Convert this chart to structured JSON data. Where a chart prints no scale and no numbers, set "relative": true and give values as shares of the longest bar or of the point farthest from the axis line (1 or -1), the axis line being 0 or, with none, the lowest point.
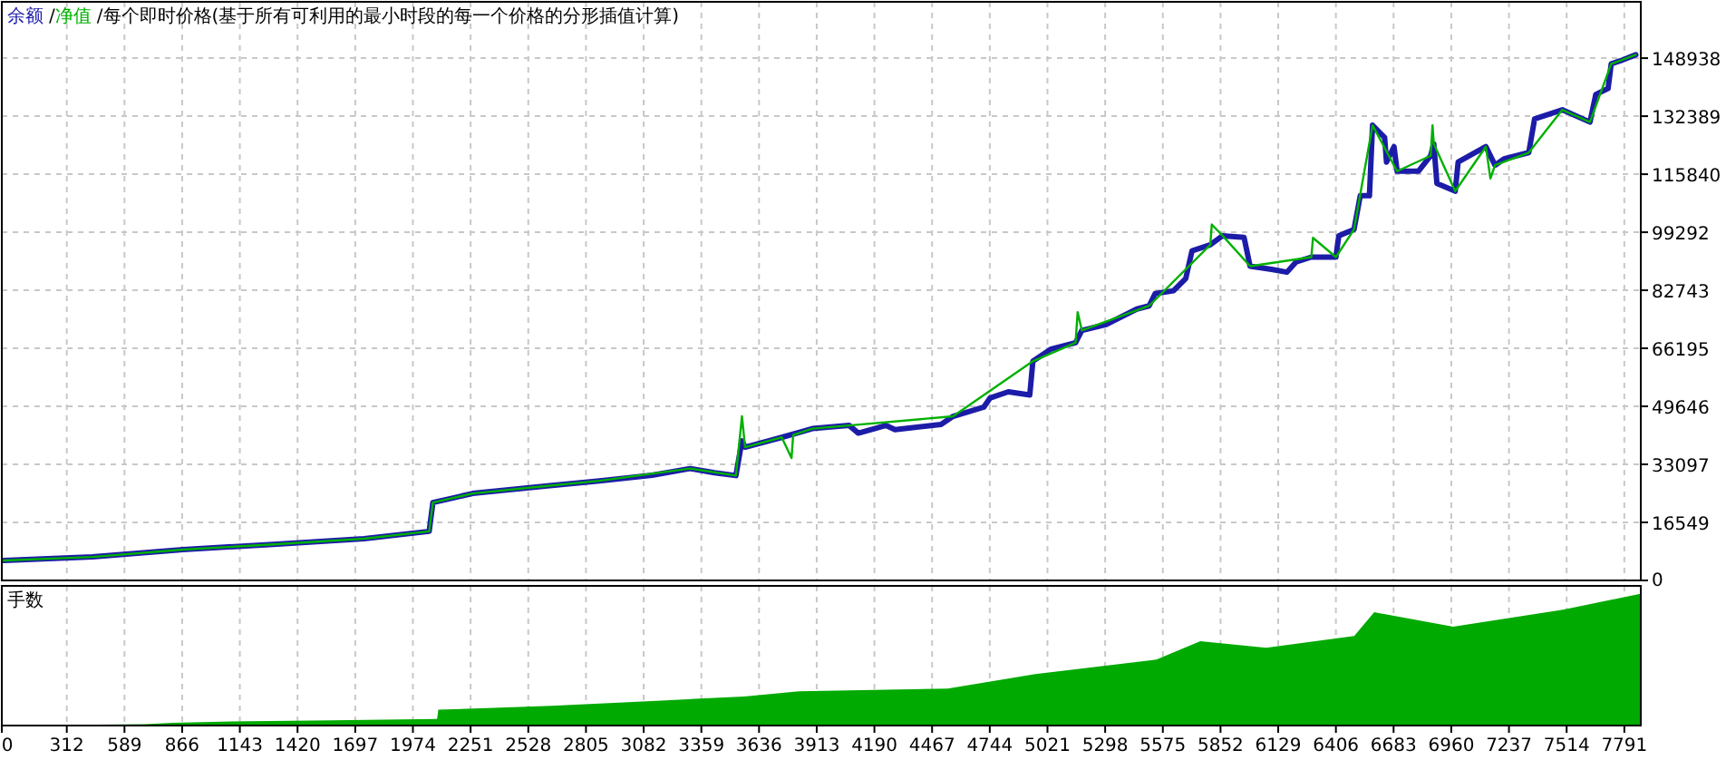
{
  "chart_data": [
    {
      "type": "line",
      "title": "每个即时价格(基于所有可利用的最小时段的每一个价格的分形插值计算)",
      "legend": "top left",
      "annotations": [
        "/",
        "/"
      ],
      "grid": true,
      "tick_labels": "y",
      "xlim": [
        0,
        7870
      ],
      "xticks": [
        0,
        312,
        589,
        866,
        1143,
        1420,
        1697,
        1974,
        2251,
        2528,
        2805,
        3082,
        3359,
        3636,
        3913,
        4190,
        4467,
        4744,
        5021,
        5298,
        5575,
        5852,
        6129,
        6406,
        6683,
        6960,
        7237,
        7514,
        7791
      ],
      "ylim": [
        0,
        165000
      ],
      "yticks": [
        0,
        16549,
        33097,
        49646,
        66195,
        82743,
        99292,
        115840,
        132389,
        148938
      ],
      "series": [
        {
          "name": "净值",
          "color": "#00b000",
          "x": [
            9,
            435,
            870,
            1304,
            1739,
            2052,
            2070,
            2261,
            2609,
            2870,
            3305,
            3525,
            3554,
            3569,
            3745,
            3792,
            3800,
            3892,
            4069,
            4568,
            4951,
            5156,
            5166,
            5186,
            5509,
            5803,
            5810,
            5862,
            5994,
            6288,
            6296,
            6406,
            6493,
            6582,
            6700,
            6861,
            6870,
            6876,
            6979,
            7126,
            7148,
            7170,
            7332,
            7493,
            7626,
            7728,
            7846
          ],
          "values": [
            5700,
            6700,
            8800,
            10300,
            11900,
            14000,
            22200,
            24800,
            26900,
            28400,
            31900,
            29900,
            46800,
            38000,
            40800,
            34900,
            41500,
            43300,
            44200,
            46800,
            62500,
            67800,
            76500,
            71300,
            78300,
            95700,
            101500,
            98300,
            89600,
            92200,
            97700,
            92200,
            100100,
            129800,
            116700,
            121100,
            129800,
            124500,
            111000,
            123700,
            114600,
            118400,
            122000,
            134200,
            130700,
            147300,
            149900
          ]
        },
        {
          "name": "余额",
          "color": "#1c1ca8",
          "x": [
            9,
            435,
            870,
            1304,
            1739,
            2052,
            2070,
            2261,
            2609,
            2870,
            3123,
            3305,
            3422,
            3525,
            3554,
            3569,
            3745,
            3892,
            4069,
            4113,
            4245,
            4289,
            4510,
            4568,
            4715,
            4745,
            4833,
            4936,
            4951,
            5039,
            5156,
            5186,
            5303,
            5450,
            5509,
            5538,
            5626,
            5685,
            5715,
            5803,
            5862,
            5965,
            5994,
            6097,
            6171,
            6214,
            6288,
            6406,
            6420,
            6493,
            6523,
            6567,
            6582,
            6640,
            6649,
            6685,
            6700,
            6802,
            6861,
            6876,
            6891,
            6979,
            6993,
            7126,
            7170,
            7213,
            7332,
            7360,
            7493,
            7626,
            7654,
            7713,
            7728,
            7773,
            7846
          ],
          "values": [
            5700,
            6700,
            8800,
            10300,
            11900,
            14000,
            22200,
            24800,
            26900,
            28400,
            30000,
            31900,
            30700,
            29900,
            39800,
            38000,
            40800,
            43300,
            44200,
            42000,
            44200,
            43000,
            44500,
            46800,
            49400,
            52000,
            53800,
            52900,
            62500,
            66000,
            67800,
            71300,
            73000,
            77400,
            78300,
            81800,
            82600,
            86100,
            94000,
            95700,
            98300,
            97800,
            89600,
            88700,
            87900,
            90800,
            92200,
            92200,
            98300,
            100100,
            109700,
            109700,
            129800,
            126300,
            119300,
            123700,
            116700,
            116700,
            121100,
            124500,
            113200,
            111000,
            119300,
            123700,
            118400,
            120200,
            122000,
            131600,
            134200,
            130700,
            138600,
            140300,
            147300,
            148200,
            149900
          ]
        }
      ]
    },
    {
      "type": "area",
      "title": "手数",
      "relative": true,
      "grid": "x",
      "tick_labels": "x",
      "color": "#00aa00",
      "xlim": [
        0,
        7870
      ],
      "xticks": [
        0,
        312,
        589,
        866,
        1143,
        1420,
        1697,
        1974,
        2251,
        2528,
        2805,
        3082,
        3359,
        3636,
        3913,
        4190,
        4467,
        4744,
        5021,
        5298,
        5575,
        5852,
        6129,
        6406,
        6683,
        6960,
        7237,
        7514,
        7791
      ],
      "x": [
        0,
        687,
        818,
        1056,
        1584,
        2090,
        2096,
        2640,
        3168,
        3564,
        3828,
        4542,
        4963,
        5544,
        5755,
        6071,
        6494,
        6590,
        6969,
        7497,
        7868
      ],
      "values": [
        0,
        0.01,
        0.02,
        0.03,
        0.04,
        0.05,
        0.12,
        0.15,
        0.19,
        0.22,
        0.26,
        0.28,
        0.39,
        0.5,
        0.64,
        0.59,
        0.68,
        0.86,
        0.75,
        0.88,
        1
      ]
    }
  ]
}
